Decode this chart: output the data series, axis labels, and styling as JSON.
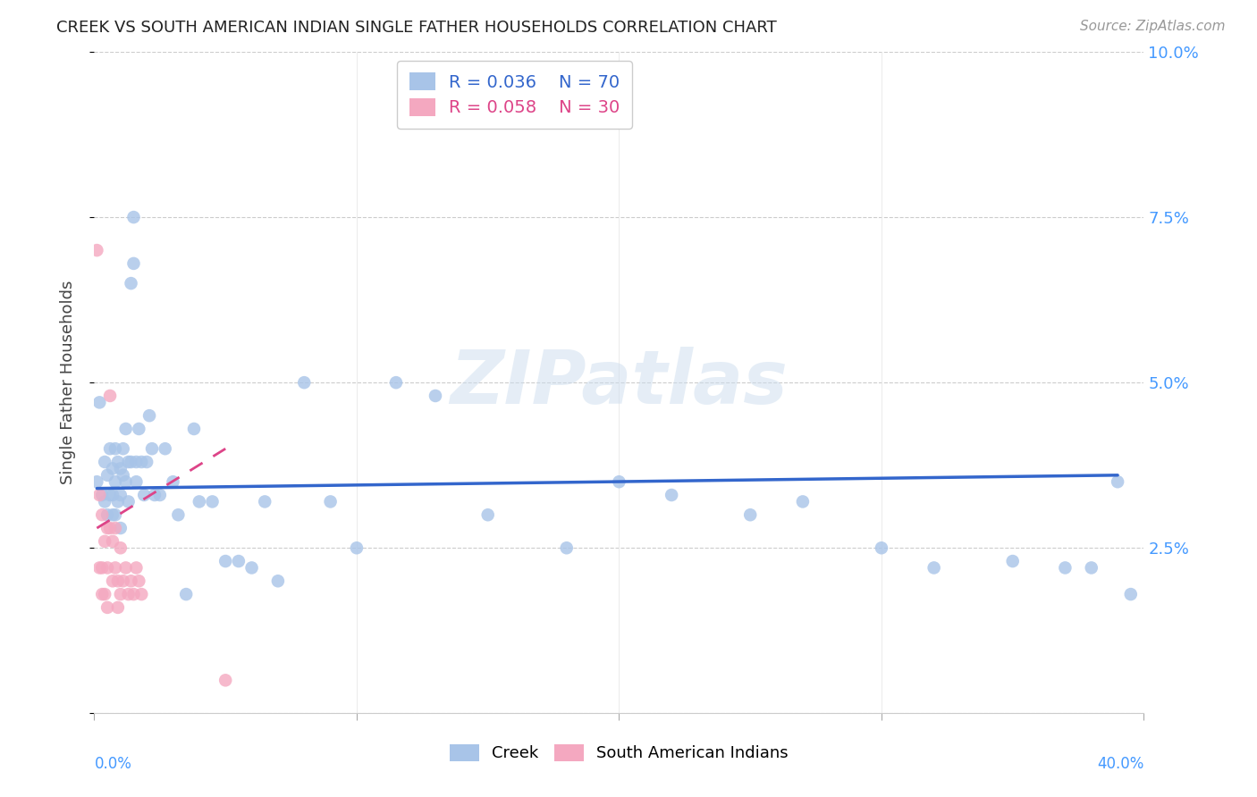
{
  "title": "CREEK VS SOUTH AMERICAN INDIAN SINGLE FATHER HOUSEHOLDS CORRELATION CHART",
  "source": "Source: ZipAtlas.com",
  "ylabel": "Single Father Households",
  "yticks": [
    0.0,
    0.025,
    0.05,
    0.075,
    0.1
  ],
  "ytick_labels": [
    "",
    "2.5%",
    "5.0%",
    "7.5%",
    "10.0%"
  ],
  "xlim": [
    0.0,
    0.4
  ],
  "ylim": [
    0.0,
    0.1
  ],
  "creek_color": "#a8c4e8",
  "south_american_color": "#f4a8c0",
  "trend_creek_color": "#3366cc",
  "trend_south_color": "#dd4488",
  "legend_creek_R": "R = 0.036",
  "legend_creek_N": "N = 70",
  "legend_south_R": "R = 0.058",
  "legend_south_N": "N = 30",
  "creek_trend_x": [
    0.001,
    0.39
  ],
  "creek_trend_y": [
    0.034,
    0.036
  ],
  "south_trend_x": [
    0.001,
    0.05
  ],
  "south_trend_y": [
    0.028,
    0.04
  ],
  "creek_points_x": [
    0.001,
    0.002,
    0.003,
    0.004,
    0.004,
    0.005,
    0.005,
    0.006,
    0.006,
    0.007,
    0.007,
    0.007,
    0.008,
    0.008,
    0.008,
    0.009,
    0.009,
    0.01,
    0.01,
    0.01,
    0.011,
    0.011,
    0.012,
    0.012,
    0.013,
    0.013,
    0.014,
    0.014,
    0.015,
    0.015,
    0.016,
    0.016,
    0.017,
    0.018,
    0.019,
    0.02,
    0.021,
    0.022,
    0.023,
    0.025,
    0.027,
    0.03,
    0.032,
    0.035,
    0.038,
    0.04,
    0.045,
    0.05,
    0.055,
    0.06,
    0.065,
    0.07,
    0.08,
    0.09,
    0.1,
    0.115,
    0.13,
    0.15,
    0.18,
    0.2,
    0.22,
    0.25,
    0.27,
    0.3,
    0.32,
    0.35,
    0.37,
    0.38,
    0.39,
    0.395
  ],
  "creek_points_y": [
    0.035,
    0.047,
    0.033,
    0.038,
    0.032,
    0.036,
    0.03,
    0.04,
    0.033,
    0.037,
    0.033,
    0.03,
    0.04,
    0.035,
    0.03,
    0.038,
    0.032,
    0.037,
    0.033,
    0.028,
    0.04,
    0.036,
    0.043,
    0.035,
    0.038,
    0.032,
    0.065,
    0.038,
    0.075,
    0.068,
    0.038,
    0.035,
    0.043,
    0.038,
    0.033,
    0.038,
    0.045,
    0.04,
    0.033,
    0.033,
    0.04,
    0.035,
    0.03,
    0.018,
    0.043,
    0.032,
    0.032,
    0.023,
    0.023,
    0.022,
    0.032,
    0.02,
    0.05,
    0.032,
    0.025,
    0.05,
    0.048,
    0.03,
    0.025,
    0.035,
    0.033,
    0.03,
    0.032,
    0.025,
    0.022,
    0.023,
    0.022,
    0.022,
    0.035,
    0.018
  ],
  "south_points_x": [
    0.001,
    0.002,
    0.002,
    0.003,
    0.003,
    0.003,
    0.004,
    0.004,
    0.005,
    0.005,
    0.005,
    0.006,
    0.006,
    0.007,
    0.007,
    0.008,
    0.008,
    0.009,
    0.009,
    0.01,
    0.01,
    0.011,
    0.012,
    0.013,
    0.014,
    0.015,
    0.016,
    0.017,
    0.018,
    0.05
  ],
  "south_points_y": [
    0.07,
    0.033,
    0.022,
    0.03,
    0.022,
    0.018,
    0.026,
    0.018,
    0.028,
    0.022,
    0.016,
    0.048,
    0.028,
    0.026,
    0.02,
    0.028,
    0.022,
    0.02,
    0.016,
    0.025,
    0.018,
    0.02,
    0.022,
    0.018,
    0.02,
    0.018,
    0.022,
    0.02,
    0.018,
    0.005
  ],
  "watermark_text": "ZIPatlas",
  "background_color": "#ffffff",
  "grid_color": "#cccccc",
  "grid_style": "--",
  "xtick_positions": [
    0.0,
    0.1,
    0.2,
    0.3,
    0.4
  ],
  "xtick_minor_positions": [
    0.05,
    0.15,
    0.25,
    0.35
  ]
}
